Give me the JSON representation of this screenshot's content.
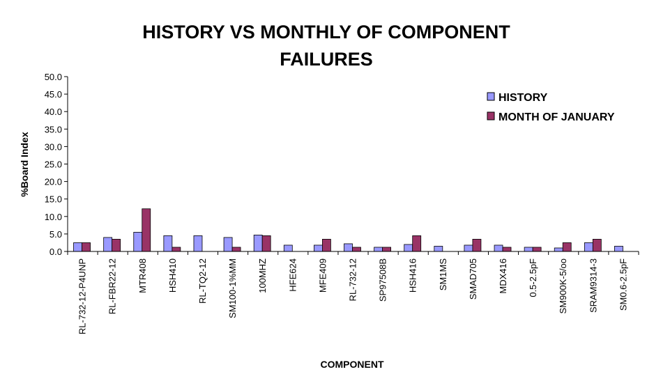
{
  "colors": {
    "history": "#9999ff",
    "january": "#993366",
    "axis": "#000000",
    "background": "#ffffff"
  },
  "chart_data": {
    "type": "bar",
    "title": "HISTORY VS MONTHLY OF COMPONENT FAILURES",
    "title_lines": [
      "HISTORY VS MONTHLY OF COMPONENT",
      "FAILURES"
    ],
    "xlabel": "COMPONENT",
    "ylabel": "%Board Index",
    "ylim": [
      0,
      50
    ],
    "yticks": [
      "0.0",
      "5.0",
      "10.0",
      "15.0",
      "20.0",
      "25.0",
      "30.0",
      "35.0",
      "40.0",
      "45.0",
      "50.0"
    ],
    "grid": false,
    "legend_position": "top-right",
    "categories": [
      "RL-732-12-P4UNP",
      "RL-FBR22-12",
      "MTR408",
      "HSH410",
      "RL-TQ2-12",
      "SM100-1%MM",
      "100MHZ",
      "HFE624",
      "MFE409",
      "RL-732-12",
      "SP97508B",
      "HSH416",
      "SM1MS",
      "SMAD705",
      "MDX416",
      "0.5-2.5pF",
      "SM900K-5/oo",
      "SRAM9314-3",
      "SM0.6-2.5pF"
    ],
    "series": [
      {
        "name": "HISTORY",
        "values": [
          2.5,
          4.0,
          5.5,
          4.5,
          4.5,
          4.0,
          4.7,
          1.8,
          1.8,
          2.2,
          1.2,
          2.0,
          1.5,
          1.8,
          1.8,
          1.2,
          1.0,
          2.5,
          1.5
        ]
      },
      {
        "name": "MONTH OF JANUARY",
        "values": [
          2.5,
          3.5,
          12.2,
          1.2,
          0,
          1.2,
          4.5,
          0,
          3.5,
          1.2,
          1.2,
          4.5,
          0,
          3.5,
          1.2,
          1.2,
          2.5,
          3.5,
          0
        ]
      }
    ]
  }
}
